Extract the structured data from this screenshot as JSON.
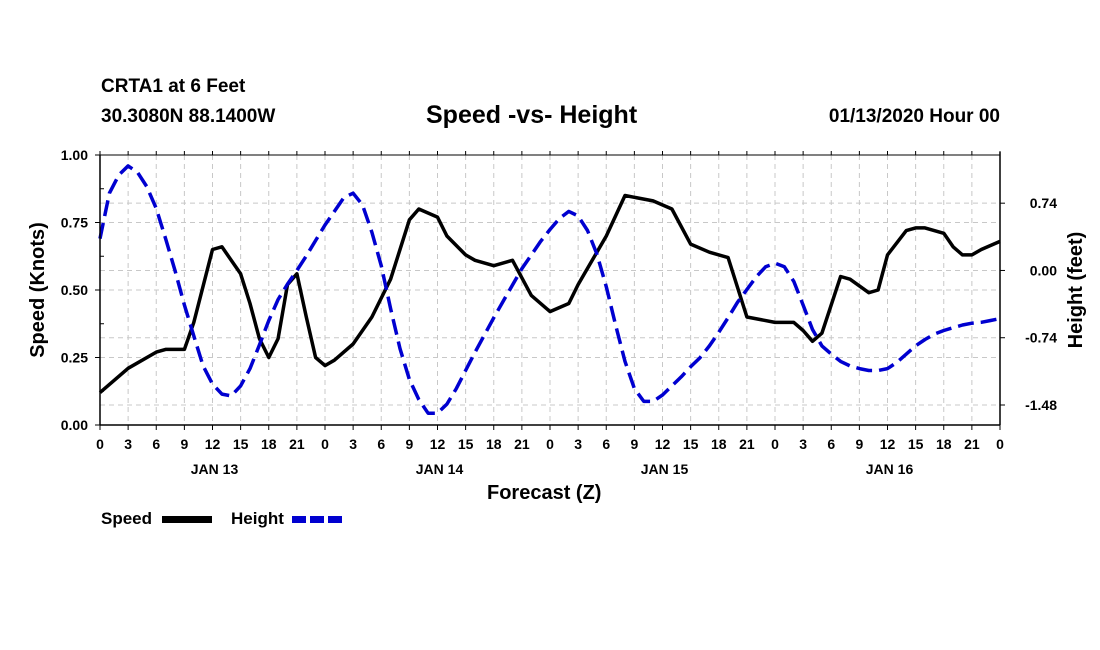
{
  "header": {
    "station": "CRTA1 at 6 Feet",
    "coords": "30.3080N 88.1400W",
    "title": "Speed -vs- Height",
    "date": "01/13/2020 Hour 00"
  },
  "legend": {
    "speed_label": "Speed",
    "height_label": "Height"
  },
  "colors": {
    "speed": "#000000",
    "height": "#0000d0",
    "grid": "#c8c8c8"
  },
  "chart_data": {
    "type": "line",
    "title": "Speed -vs- Height",
    "xlabel": "Forecast (Z)",
    "ylabel": "Speed (Knots)",
    "y2label": "Height (feet)",
    "grid": true,
    "xlim": [
      0,
      96
    ],
    "ylim": [
      0,
      1
    ],
    "y2lim": [
      -1.7,
      1.27
    ],
    "x_tick_labels": [
      "0",
      "3",
      "6",
      "9",
      "12",
      "15",
      "18",
      "21",
      "0",
      "3",
      "6",
      "9",
      "12",
      "15",
      "18",
      "21",
      "0",
      "3",
      "6",
      "9",
      "12",
      "15",
      "18",
      "21",
      "0",
      "3",
      "6",
      "9",
      "12",
      "15",
      "18",
      "21",
      "0"
    ],
    "day_labels": [
      {
        "hour": 12,
        "label": "JAN 13"
      },
      {
        "hour": 36,
        "label": "JAN 14"
      },
      {
        "hour": 60,
        "label": "JAN 15"
      },
      {
        "hour": 84,
        "label": "JAN 16"
      }
    ],
    "y_ticks": [
      "0.00",
      "0.25",
      "0.50",
      "0.75",
      "1.00"
    ],
    "y_tick_values": [
      0,
      0.25,
      0.5,
      0.75,
      1.0
    ],
    "y2_ticks": [
      "0.74",
      "0.00",
      "-0.74",
      "-1.48"
    ],
    "y2_tick_values": [
      0.74,
      0,
      -0.74,
      -1.48
    ],
    "series": [
      {
        "name": "Speed",
        "axis": "left",
        "style": "solid",
        "x": [
          0,
          3,
          6,
          7,
          9,
          10,
          12,
          13,
          15,
          16,
          17,
          18,
          19,
          20,
          21,
          22,
          23,
          24,
          25,
          27,
          29,
          31,
          33,
          34,
          36,
          37,
          39,
          40,
          42,
          44,
          46,
          48,
          50,
          51,
          52,
          54,
          56,
          59,
          61,
          63,
          65,
          67,
          69,
          72,
          74,
          75,
          76,
          77,
          79,
          80,
          82,
          83,
          84,
          86,
          87,
          88,
          90,
          91,
          92,
          93,
          94,
          96
        ],
        "values": [
          0.12,
          0.21,
          0.27,
          0.28,
          0.28,
          0.38,
          0.65,
          0.66,
          0.56,
          0.45,
          0.32,
          0.25,
          0.32,
          0.52,
          0.56,
          0.4,
          0.25,
          0.22,
          0.24,
          0.3,
          0.4,
          0.54,
          0.76,
          0.8,
          0.77,
          0.7,
          0.63,
          0.61,
          0.59,
          0.61,
          0.48,
          0.42,
          0.45,
          0.52,
          0.58,
          0.7,
          0.85,
          0.83,
          0.8,
          0.67,
          0.64,
          0.62,
          0.4,
          0.38,
          0.38,
          0.35,
          0.31,
          0.34,
          0.55,
          0.54,
          0.49,
          0.5,
          0.63,
          0.72,
          0.73,
          0.73,
          0.71,
          0.66,
          0.63,
          0.63,
          0.65,
          0.68
        ]
      },
      {
        "name": "Height",
        "axis": "right",
        "style": "dashed",
        "x": [
          0,
          1,
          2,
          3,
          4,
          5,
          6,
          7,
          8,
          9,
          10,
          11,
          12,
          13,
          14,
          15,
          16,
          17,
          18,
          19,
          20,
          21,
          22,
          23,
          24,
          25,
          26,
          27,
          28,
          29,
          30,
          31,
          32,
          33,
          34,
          35,
          36,
          37,
          38,
          39,
          40,
          41,
          42,
          43,
          44,
          45,
          46,
          47,
          48,
          49,
          50,
          51,
          52,
          53,
          54,
          55,
          56,
          57,
          58,
          59,
          60,
          61,
          62,
          63,
          64,
          65,
          66,
          67,
          68,
          69,
          70,
          71,
          72,
          73,
          74,
          75,
          76,
          77,
          78,
          79,
          80,
          81,
          82,
          83,
          84,
          85,
          86,
          87,
          88,
          89,
          90,
          91,
          92,
          93,
          94,
          95,
          96
        ],
        "values": [
          0.35,
          0.85,
          1.05,
          1.15,
          1.08,
          0.92,
          0.68,
          0.35,
          0.0,
          -0.38,
          -0.72,
          -1.05,
          -1.25,
          -1.36,
          -1.38,
          -1.27,
          -1.08,
          -0.82,
          -0.55,
          -0.32,
          -0.15,
          0.0,
          0.16,
          0.33,
          0.5,
          0.65,
          0.8,
          0.85,
          0.72,
          0.42,
          0.05,
          -0.42,
          -0.86,
          -1.2,
          -1.42,
          -1.57,
          -1.57,
          -1.47,
          -1.3,
          -1.1,
          -0.9,
          -0.71,
          -0.52,
          -0.34,
          -0.16,
          0.02,
          0.17,
          0.32,
          0.45,
          0.57,
          0.65,
          0.6,
          0.44,
          0.18,
          -0.18,
          -0.6,
          -1.0,
          -1.3,
          -1.44,
          -1.44,
          -1.37,
          -1.27,
          -1.17,
          -1.06,
          -0.96,
          -0.83,
          -0.68,
          -0.52,
          -0.35,
          -0.21,
          -0.07,
          0.04,
          0.08,
          0.04,
          -0.12,
          -0.38,
          -0.65,
          -0.83,
          -0.92,
          -1.0,
          -1.05,
          -1.08,
          -1.1,
          -1.1,
          -1.08,
          -1.01,
          -0.92,
          -0.83,
          -0.76,
          -0.7,
          -0.66,
          -0.63,
          -0.6,
          -0.58,
          -0.57,
          -0.55,
          -0.53
        ]
      }
    ]
  }
}
